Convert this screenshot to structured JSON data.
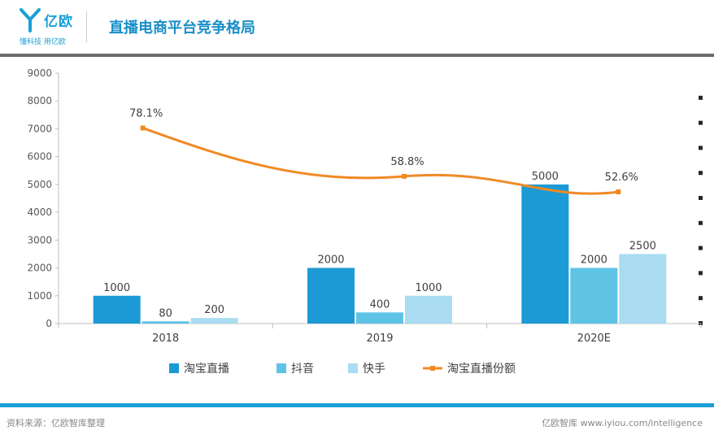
{
  "header": {
    "logo_text": "亿欧",
    "logo_slogan": "懂科技 用亿欧",
    "title": "直播电商平台竞争格局"
  },
  "colors": {
    "taobao": "#1b9ad6",
    "douyin": "#5fc3e6",
    "kuaishou": "#a9dcf0",
    "share": "#f08a24",
    "accent": "#1aa0d8"
  },
  "chart_data": {
    "type": "bar",
    "categories": [
      "2018",
      "2019",
      "2020E"
    ],
    "series": [
      {
        "name": "淘宝直播",
        "values": [
          1000,
          2000,
          5000
        ],
        "labels": [
          "1000",
          "2000",
          "5000"
        ]
      },
      {
        "name": "抖音",
        "values": [
          80,
          400,
          2000
        ],
        "labels": [
          "80",
          "400",
          "2000"
        ]
      },
      {
        "name": "快手",
        "values": [
          200,
          1000,
          2500
        ],
        "labels": [
          "200",
          "1000",
          "2500"
        ]
      }
    ],
    "line_series": {
      "name": "淘宝直播份额",
      "values": [
        78.1,
        58.8,
        52.6
      ],
      "labels": [
        "78.1%",
        "58.8%",
        "52.6%"
      ]
    },
    "y_ticks": [
      "0",
      "1000",
      "2000",
      "3000",
      "4000",
      "5000",
      "6000",
      "7000",
      "8000",
      "9000"
    ],
    "y2_ticks": [
      "",
      "",
      "",
      "",
      "",
      "",
      "",
      "",
      "",
      ""
    ],
    "ylim": [
      0,
      9000
    ],
    "y2lim": [
      0,
      100
    ],
    "legend_position": "bottom",
    "legend": [
      "淘宝直播",
      "抖音",
      "快手",
      "淘宝直播份额"
    ]
  },
  "footer": {
    "source": "资料来源：亿欧智库整理",
    "credit": "亿欧智库 www.iyiou.com/intelligence"
  }
}
